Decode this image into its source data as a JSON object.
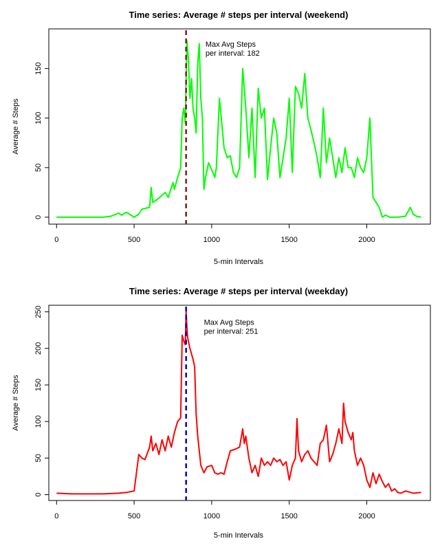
{
  "chart_data": [
    {
      "type": "line",
      "title": "Time series: Average # steps per interval (weekend)",
      "xlabel": "5-min Intervals",
      "ylabel": "Average # Steps",
      "xlim": [
        -50,
        2410
      ],
      "ylim": [
        -7,
        190
      ],
      "xticks": [
        0,
        500,
        1000,
        1500,
        2000
      ],
      "yticks": [
        0,
        50,
        100,
        150
      ],
      "series": [
        {
          "color": "#00ff00",
          "x": [
            0,
            50,
            100,
            200,
            300,
            350,
            400,
            420,
            450,
            500,
            530,
            550,
            600,
            610,
            620,
            650,
            700,
            720,
            750,
            760,
            780,
            800,
            810,
            820,
            830,
            840,
            850,
            860,
            870,
            880,
            890,
            900,
            910,
            920,
            930,
            940,
            950,
            960,
            980,
            1000,
            1020,
            1030,
            1050,
            1080,
            1100,
            1120,
            1140,
            1160,
            1180,
            1200,
            1220,
            1240,
            1260,
            1280,
            1300,
            1320,
            1340,
            1360,
            1380,
            1400,
            1420,
            1440,
            1460,
            1480,
            1500,
            1520,
            1540,
            1560,
            1580,
            1600,
            1620,
            1640,
            1660,
            1680,
            1700,
            1720,
            1740,
            1760,
            1780,
            1800,
            1820,
            1840,
            1860,
            1880,
            1900,
            1920,
            1940,
            1960,
            1980,
            2000,
            2020,
            2040,
            2060,
            2080,
            2100,
            2120,
            2150,
            2200,
            2250,
            2280,
            2300,
            2320,
            2350
          ],
          "y": [
            0,
            0,
            0,
            0,
            0,
            1,
            4,
            2,
            5,
            0,
            3,
            8,
            10,
            30,
            15,
            18,
            25,
            20,
            35,
            28,
            40,
            50,
            100,
            110,
            95,
            178,
            160,
            120,
            140,
            110,
            100,
            85,
            155,
            175,
            120,
            100,
            28,
            40,
            55,
            48,
            40,
            50,
            120,
            70,
            60,
            62,
            45,
            40,
            50,
            150,
            110,
            60,
            110,
            40,
            130,
            100,
            110,
            38,
            70,
            100,
            85,
            40,
            60,
            80,
            120,
            45,
            132,
            125,
            110,
            145,
            100,
            88,
            75,
            60,
            40,
            110,
            55,
            80,
            60,
            40,
            60,
            45,
            70,
            50,
            50,
            40,
            60,
            50,
            45,
            60,
            100,
            20,
            15,
            10,
            0,
            2,
            0,
            0,
            1,
            10,
            3,
            1,
            0
          ]
        }
      ],
      "vline": {
        "x": 835,
        "color": "#7f1a1a"
      },
      "annotation": {
        "lines": [
          "Max Avg Steps",
          "per interval:  182"
        ],
        "x": 960,
        "y": 172
      }
    },
    {
      "type": "line",
      "title": "Time series: Average # steps per interval (weekday)",
      "xlabel": "5-min Intervals",
      "ylabel": "Average # Steps",
      "xlim": [
        -50,
        2410
      ],
      "ylim": [
        -8,
        259
      ],
      "xticks": [
        0,
        500,
        1000,
        1500,
        2000
      ],
      "yticks": [
        0,
        50,
        100,
        150,
        200,
        250
      ],
      "series": [
        {
          "color": "#ff0000",
          "x": [
            0,
            100,
            200,
            300,
            400,
            450,
            500,
            530,
            550,
            570,
            600,
            610,
            620,
            640,
            660,
            680,
            700,
            720,
            740,
            760,
            780,
            800,
            810,
            820,
            830,
            835,
            840,
            845,
            850,
            860,
            880,
            890,
            900,
            910,
            930,
            950,
            970,
            1000,
            1020,
            1040,
            1060,
            1080,
            1100,
            1120,
            1150,
            1180,
            1200,
            1210,
            1220,
            1240,
            1260,
            1280,
            1300,
            1320,
            1340,
            1360,
            1380,
            1400,
            1420,
            1440,
            1460,
            1480,
            1500,
            1520,
            1540,
            1550,
            1560,
            1580,
            1600,
            1620,
            1640,
            1660,
            1680,
            1700,
            1720,
            1740,
            1760,
            1780,
            1800,
            1820,
            1840,
            1850,
            1860,
            1880,
            1900,
            1910,
            1920,
            1940,
            1960,
            1980,
            2000,
            2020,
            2040,
            2060,
            2080,
            2100,
            2120,
            2140,
            2160,
            2180,
            2200,
            2220,
            2250,
            2300,
            2350
          ],
          "y": [
            2,
            1,
            1,
            1,
            2,
            3,
            5,
            55,
            50,
            48,
            65,
            80,
            60,
            70,
            55,
            75,
            60,
            80,
            65,
            85,
            100,
            105,
            218,
            210,
            205,
            251,
            230,
            215,
            210,
            200,
            185,
            175,
            110,
            80,
            40,
            30,
            38,
            40,
            30,
            28,
            30,
            28,
            45,
            60,
            62,
            65,
            90,
            70,
            80,
            50,
            30,
            40,
            25,
            50,
            40,
            45,
            40,
            50,
            45,
            48,
            40,
            45,
            20,
            40,
            50,
            104,
            60,
            45,
            55,
            60,
            50,
            45,
            40,
            70,
            75,
            95,
            45,
            55,
            70,
            90,
            70,
            125,
            100,
            85,
            75,
            85,
            60,
            40,
            50,
            40,
            20,
            10,
            30,
            15,
            28,
            18,
            10,
            15,
            5,
            8,
            3,
            2,
            5,
            2,
            3
          ]
        }
      ],
      "vline": {
        "x": 835,
        "color": "#0000cc"
      },
      "annotation": {
        "lines": [
          "Max Avg Steps",
          "per interval:  251"
        ],
        "x": 950,
        "y": 232
      }
    }
  ]
}
